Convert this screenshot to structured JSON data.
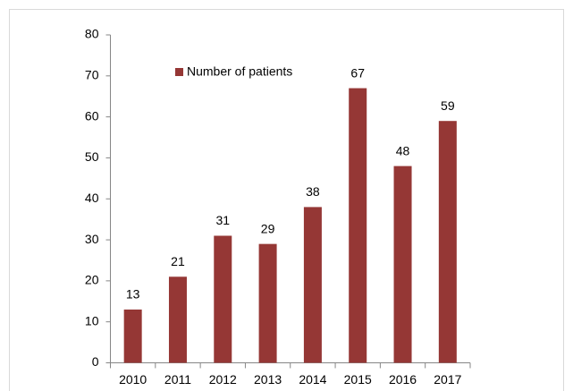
{
  "chart_data": {
    "type": "bar",
    "categories": [
      "2010",
      "2011",
      "2012",
      "2013",
      "2014",
      "2015",
      "2016",
      "2017"
    ],
    "series": [
      {
        "name": "Number of patients",
        "color": "#953735",
        "values": [
          13,
          21,
          31,
          29,
          38,
          67,
          48,
          59
        ]
      }
    ],
    "ylim": [
      0,
      80
    ],
    "yticks": [
      0,
      10,
      20,
      30,
      40,
      50,
      60,
      70,
      80
    ],
    "grid": false,
    "data_labels": true
  }
}
